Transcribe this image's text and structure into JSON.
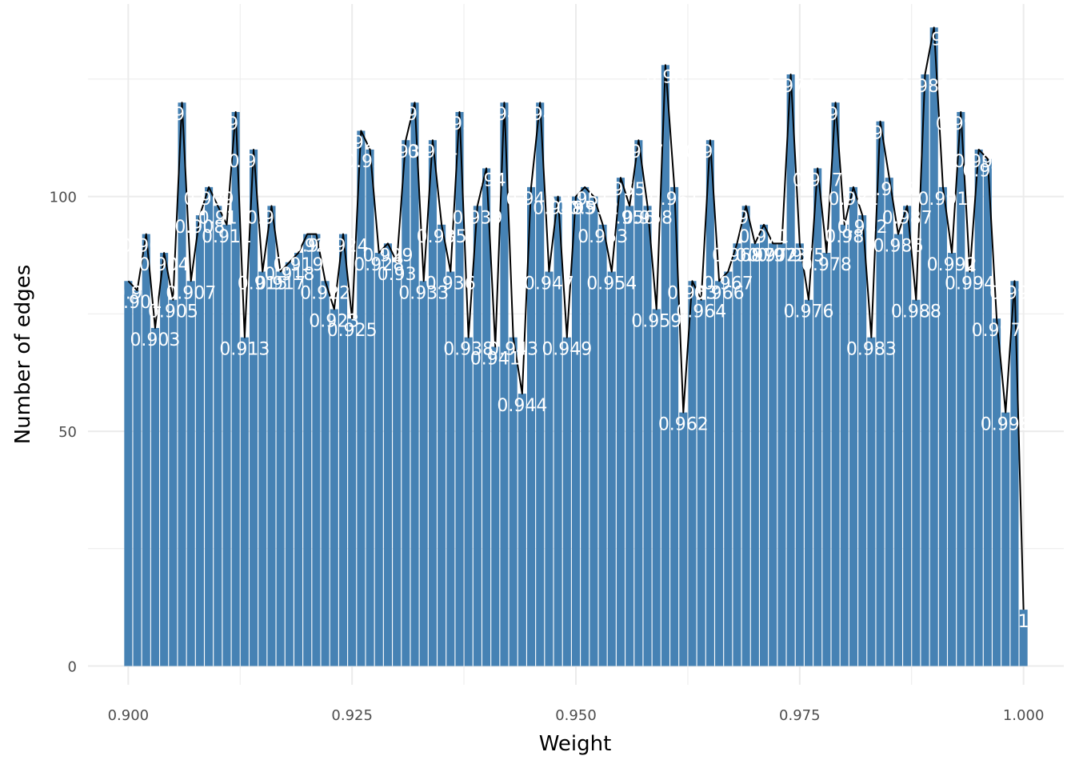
{
  "chart_data": {
    "type": "bar",
    "xlabel": "Weight",
    "ylabel": "Number of edges",
    "xlim": [
      0.8955,
      1.0045
    ],
    "ylim": [
      -4,
      141
    ],
    "x_ticks": [
      0.9,
      0.925,
      0.95,
      0.975,
      1.0
    ],
    "x_tick_labels": [
      "0.900",
      "0.925",
      "0.950",
      "0.975",
      "1.000"
    ],
    "y_ticks": [
      0,
      50,
      100
    ],
    "y_tick_labels": [
      "0",
      "50",
      "100"
    ],
    "x_start": 0.9,
    "x_step": 0.001,
    "values": [
      82,
      80,
      92,
      72,
      88,
      78,
      120,
      82,
      96,
      102,
      98,
      94,
      118,
      70,
      110,
      84,
      98,
      84,
      86,
      88,
      92,
      92,
      82,
      76,
      92,
      74,
      114,
      110,
      88,
      90,
      86,
      112,
      120,
      82,
      112,
      94,
      84,
      118,
      70,
      98,
      106,
      68,
      120,
      70,
      58,
      102,
      120,
      84,
      100,
      70,
      100,
      102,
      100,
      94,
      84,
      104,
      98,
      112,
      98,
      76,
      128,
      102,
      54,
      82,
      78,
      112,
      82,
      84,
      90,
      98,
      90,
      94,
      90,
      90,
      126,
      90,
      78,
      106,
      88,
      120,
      94,
      102,
      96,
      70,
      116,
      104,
      92,
      98,
      78,
      126,
      136,
      102,
      88,
      118,
      84,
      110,
      108,
      74,
      54,
      82,
      12
    ],
    "labels": [
      "0.9",
      "0.901",
      "0.902",
      "0.903",
      "0.904",
      "0.905",
      "0.906",
      "0.907",
      "0.908",
      "0.909",
      "0.91",
      "0.911",
      "0.912",
      "0.913",
      "0.914",
      "0.915",
      "0.916",
      "0.917",
      "0.918",
      "0.919",
      "0.92",
      "0.921",
      "0.922",
      "0.923",
      "0.924",
      "0.925",
      "0.926",
      "0.927",
      "0.928",
      "0.929",
      "0.93",
      "0.931",
      "0.932",
      "0.933",
      "0.934",
      "0.935",
      "0.936",
      "0.937",
      "0.938",
      "0.939",
      "0.94",
      "0.941",
      "0.942",
      "0.943",
      "0.944",
      "0.945",
      "0.946",
      "0.947",
      "0.948",
      "0.949",
      "0.95",
      "0.951",
      "0.952",
      "0.953",
      "0.954",
      "0.955",
      "0.956",
      "0.957",
      "0.958",
      "0.959",
      "0.96",
      "0.961",
      "0.962",
      "0.963",
      "0.964",
      "0.965",
      "0.966",
      "0.967",
      "0.968",
      "0.969",
      "0.97",
      "0.971",
      "0.972",
      "0.973",
      "0.974",
      "0.975",
      "0.976",
      "0.977",
      "0.978",
      "0.979",
      "0.98",
      "0.981",
      "0.982",
      "0.983",
      "0.984",
      "0.985",
      "0.986",
      "0.987",
      "0.988",
      "0.989",
      "0.99",
      "0.991",
      "0.992",
      "0.993",
      "0.994",
      "0.995",
      "0.996",
      "0.997",
      "0.998",
      "0.999",
      "1"
    ],
    "grid": true,
    "overlay": "line",
    "colors": {
      "bar": "#4682b4",
      "line": "#000000",
      "label": "#ffffff",
      "grid": "#ebebeb"
    }
  }
}
